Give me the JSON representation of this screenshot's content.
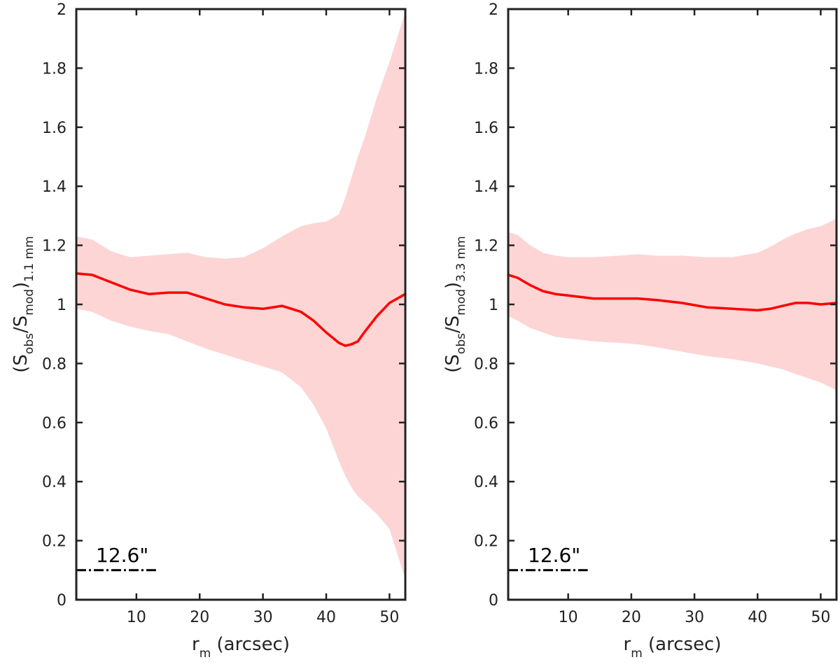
{
  "chart_data": [
    {
      "type": "line",
      "ylabel": {
        "open": "(S",
        "sub1": "obs",
        "slash": "/S",
        "sub2": "mod",
        "close": ")",
        "sub3": "1.1 mm"
      },
      "xlabel": {
        "main": "r",
        "sub": "m",
        "rest": " (arcsec)"
      },
      "xlim": [
        0.5,
        52.5
      ],
      "ylim": [
        0,
        2
      ],
      "xticks": [
        10,
        20,
        30,
        40,
        50
      ],
      "yticks": [
        0,
        0.2,
        0.4,
        0.6,
        0.8,
        1,
        1.2,
        1.4,
        1.6,
        1.8,
        2
      ],
      "ytick_labels": [
        "0",
        "0.2",
        "0.4",
        "0.6",
        "0.8",
        "1",
        "1.2",
        "1.4",
        "1.6",
        "1.8",
        "2"
      ],
      "series": [
        {
          "name": "ratio",
          "color": "#ff0000",
          "x": [
            0.5,
            3,
            6,
            9,
            12,
            15,
            18,
            21,
            24,
            27,
            30,
            33,
            36,
            38,
            40,
            42,
            43,
            44,
            45,
            46,
            48,
            50,
            52.5
          ],
          "y": [
            1.105,
            1.1,
            1.075,
            1.05,
            1.035,
            1.04,
            1.04,
            1.02,
            1.0,
            0.99,
            0.985,
            0.995,
            0.975,
            0.945,
            0.905,
            0.87,
            0.86,
            0.865,
            0.875,
            0.905,
            0.96,
            1.005,
            1.035
          ]
        }
      ],
      "band": {
        "color": "#fdd5d5",
        "x": [
          0.5,
          3,
          6,
          9,
          12,
          15,
          18,
          21,
          24,
          27,
          30,
          33,
          36,
          38,
          40,
          42,
          43,
          44,
          45,
          46,
          48,
          50,
          52.5
        ],
        "upper": [
          1.23,
          1.22,
          1.18,
          1.16,
          1.165,
          1.17,
          1.175,
          1.16,
          1.155,
          1.16,
          1.19,
          1.23,
          1.265,
          1.275,
          1.28,
          1.305,
          1.36,
          1.43,
          1.5,
          1.56,
          1.7,
          1.82,
          1.99
        ],
        "lower": [
          0.985,
          0.975,
          0.945,
          0.925,
          0.91,
          0.9,
          0.875,
          0.85,
          0.83,
          0.81,
          0.79,
          0.77,
          0.72,
          0.66,
          0.58,
          0.47,
          0.42,
          0.38,
          0.35,
          0.33,
          0.29,
          0.24,
          0.07
        ]
      },
      "scale_bar": {
        "label": "12.6\"",
        "x_start": 0.5,
        "x_end": 13.1,
        "y": 0.1,
        "color": "#000000"
      }
    },
    {
      "type": "line",
      "ylabel": {
        "open": "(S",
        "sub1": "obs",
        "slash": "/S",
        "sub2": "mod",
        "close": ")",
        "sub3": "3.3 mm"
      },
      "xlabel": {
        "main": "r",
        "sub": "m",
        "rest": " (arcsec)"
      },
      "xlim": [
        0.5,
        52.5
      ],
      "ylim": [
        0,
        2
      ],
      "xticks": [
        10,
        20,
        30,
        40,
        50
      ],
      "yticks": [
        0,
        0.2,
        0.4,
        0.6,
        0.8,
        1,
        1.2,
        1.4,
        1.6,
        1.8,
        2
      ],
      "ytick_labels": [
        "0",
        "0.2",
        "0.4",
        "0.6",
        "0.8",
        "1",
        "1.2",
        "1.4",
        "1.6",
        "1.8",
        "2"
      ],
      "series": [
        {
          "name": "ratio",
          "color": "#ff0000",
          "x": [
            0.5,
            2,
            4,
            6,
            8,
            10,
            14,
            18,
            21,
            24,
            28,
            32,
            36,
            40,
            42,
            44,
            46,
            47,
            48,
            50,
            52.5
          ],
          "y": [
            1.1,
            1.09,
            1.065,
            1.045,
            1.035,
            1.03,
            1.02,
            1.02,
            1.02,
            1.015,
            1.005,
            0.99,
            0.985,
            0.98,
            0.985,
            0.995,
            1.005,
            1.005,
            1.005,
            1.0,
            1.005
          ]
        }
      ],
      "band": {
        "color": "#fdd5d5",
        "x": [
          0.5,
          2,
          4,
          6,
          8,
          10,
          14,
          18,
          21,
          24,
          28,
          32,
          36,
          40,
          42,
          44,
          46,
          48,
          50,
          52.5
        ],
        "upper": [
          1.245,
          1.235,
          1.2,
          1.175,
          1.165,
          1.16,
          1.16,
          1.165,
          1.17,
          1.165,
          1.165,
          1.16,
          1.16,
          1.175,
          1.195,
          1.22,
          1.24,
          1.255,
          1.265,
          1.29
        ],
        "lower": [
          0.96,
          0.945,
          0.92,
          0.905,
          0.89,
          0.885,
          0.875,
          0.87,
          0.865,
          0.855,
          0.84,
          0.825,
          0.815,
          0.8,
          0.79,
          0.78,
          0.765,
          0.75,
          0.735,
          0.71
        ]
      },
      "scale_bar": {
        "label": "12.6\"",
        "x_start": 0.5,
        "x_end": 13.1,
        "y": 0.1,
        "color": "#000000"
      }
    }
  ]
}
